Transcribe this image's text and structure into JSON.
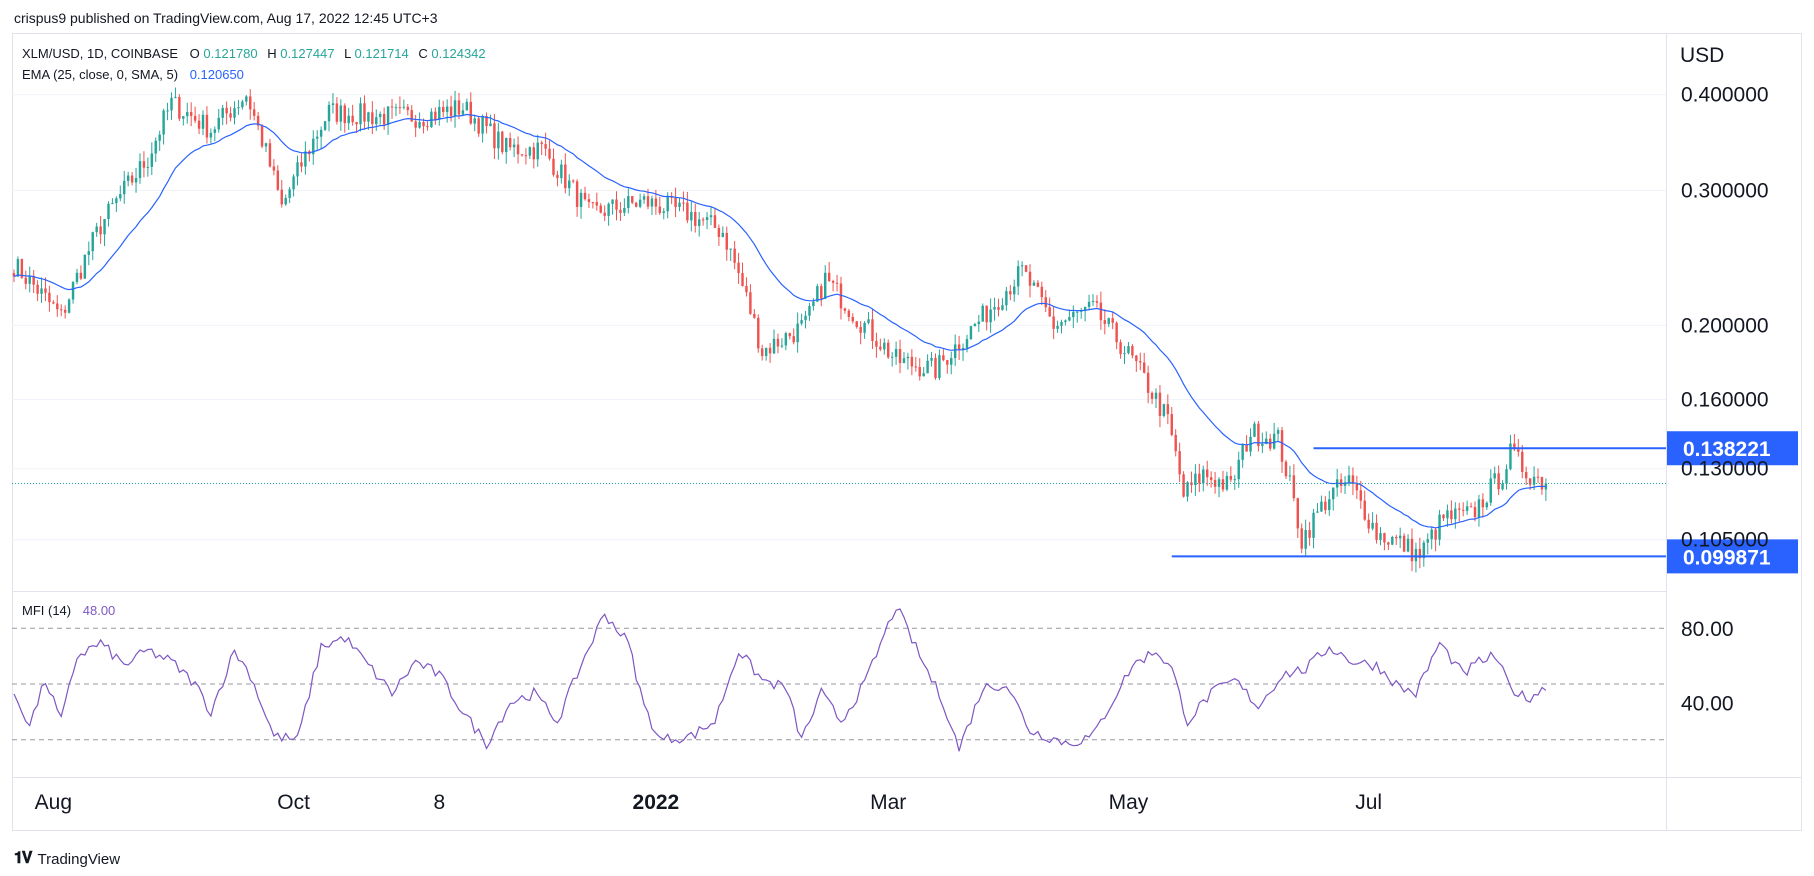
{
  "header": {
    "publisher": "crispus9 published on TradingView.com, Aug 17, 2022 12:45 UTC+3"
  },
  "legend": {
    "symbol": "XLM/USD, 1D, COINBASE",
    "o_label": "O",
    "o_value": "0.121780",
    "h_label": "H",
    "h_value": "0.127447",
    "l_label": "L",
    "l_value": "0.121714",
    "c_label": "C",
    "c_value": "0.124342",
    "ema_label": "EMA (25, close, 0, SMA, 5)",
    "ema_value": "0.120650",
    "mfi_label": "MFI (14)",
    "mfi_value": "48.00"
  },
  "footer": {
    "brand": "TradingView"
  },
  "colors": {
    "up": "#26a69a",
    "down": "#ef5350",
    "ema": "#2962ff",
    "mfi": "#7e57c2",
    "level": "#2962ff",
    "grid": "#e0e3eb",
    "axisText": "#131722"
  },
  "chart_data": [
    {
      "type": "candlestick",
      "title": "XLM/USD, 1D, COINBASE",
      "ylabel": "USD",
      "y_scale": "log",
      "ylim": [
        0.09,
        0.48
      ],
      "y_ticks": [
        {
          "value": 0.4,
          "label": "0.400000"
        },
        {
          "value": 0.3,
          "label": "0.300000"
        },
        {
          "value": 0.2,
          "label": "0.200000"
        },
        {
          "value": 0.16,
          "label": "0.160000"
        },
        {
          "value": 0.13,
          "label": "0.130000"
        },
        {
          "value": 0.105,
          "label": "0.105000"
        }
      ],
      "x_ticks": [
        {
          "day": 10,
          "label": "Aug"
        },
        {
          "day": 71,
          "label": "Oct"
        },
        {
          "day": 108,
          "label": "8"
        },
        {
          "day": 163,
          "label": "2022"
        },
        {
          "day": 222,
          "label": "Mar"
        },
        {
          "day": 283,
          "label": "May"
        },
        {
          "day": 344,
          "label": "Jul"
        }
      ],
      "levels": [
        {
          "value": 0.138221,
          "label": "0.138221",
          "from_day": 330,
          "to_day": 410
        },
        {
          "value": 0.099871,
          "label": "0.099871",
          "from_day": 294,
          "to_day": 410
        }
      ],
      "last_price": 0.124342,
      "anchors": [
        {
          "day": 0,
          "close": 0.24
        },
        {
          "day": 12,
          "close": 0.205
        },
        {
          "day": 22,
          "close": 0.27
        },
        {
          "day": 34,
          "close": 0.33
        },
        {
          "day": 40,
          "close": 0.39
        },
        {
          "day": 50,
          "close": 0.36
        },
        {
          "day": 59,
          "close": 0.4
        },
        {
          "day": 68,
          "close": 0.285
        },
        {
          "day": 80,
          "close": 0.38
        },
        {
          "day": 92,
          "close": 0.375
        },
        {
          "day": 104,
          "close": 0.375
        },
        {
          "day": 114,
          "close": 0.385
        },
        {
          "day": 125,
          "close": 0.34
        },
        {
          "day": 134,
          "close": 0.34
        },
        {
          "day": 146,
          "close": 0.28
        },
        {
          "day": 160,
          "close": 0.29
        },
        {
          "day": 171,
          "close": 0.28
        },
        {
          "day": 180,
          "close": 0.265
        },
        {
          "day": 190,
          "close": 0.185
        },
        {
          "day": 201,
          "close": 0.2
        },
        {
          "day": 206,
          "close": 0.23
        },
        {
          "day": 214,
          "close": 0.205
        },
        {
          "day": 224,
          "close": 0.18
        },
        {
          "day": 234,
          "close": 0.175
        },
        {
          "day": 246,
          "close": 0.205
        },
        {
          "day": 256,
          "close": 0.235
        },
        {
          "day": 264,
          "close": 0.2
        },
        {
          "day": 274,
          "close": 0.21
        },
        {
          "day": 284,
          "close": 0.18
        },
        {
          "day": 293,
          "close": 0.15
        },
        {
          "day": 297,
          "close": 0.12
        },
        {
          "day": 302,
          "close": 0.128
        },
        {
          "day": 309,
          "close": 0.123
        },
        {
          "day": 314,
          "close": 0.145
        },
        {
          "day": 321,
          "close": 0.142
        },
        {
          "day": 327,
          "close": 0.105
        },
        {
          "day": 334,
          "close": 0.12
        },
        {
          "day": 339,
          "close": 0.125
        },
        {
          "day": 346,
          "close": 0.107
        },
        {
          "day": 352,
          "close": 0.104
        },
        {
          "day": 357,
          "close": 0.1
        },
        {
          "day": 363,
          "close": 0.112
        },
        {
          "day": 370,
          "close": 0.113
        },
        {
          "day": 378,
          "close": 0.128
        },
        {
          "day": 380,
          "close": 0.136
        },
        {
          "day": 384,
          "close": 0.129
        },
        {
          "day": 389,
          "close": 0.124342
        }
      ]
    },
    {
      "type": "line",
      "title": "MFI (14)",
      "ylim": [
        0,
        100
      ],
      "y_ticks": [
        {
          "value": 80,
          "label": "80.00"
        },
        {
          "value": 40,
          "label": "40.00"
        }
      ],
      "bands": [
        20,
        50,
        80
      ],
      "anchors": [
        {
          "day": 0,
          "v": 45
        },
        {
          "day": 4,
          "v": 28
        },
        {
          "day": 8,
          "v": 52
        },
        {
          "day": 12,
          "v": 30
        },
        {
          "day": 16,
          "v": 65
        },
        {
          "day": 22,
          "v": 72
        },
        {
          "day": 28,
          "v": 60
        },
        {
          "day": 34,
          "v": 68
        },
        {
          "day": 40,
          "v": 62
        },
        {
          "day": 46,
          "v": 50
        },
        {
          "day": 50,
          "v": 35
        },
        {
          "day": 56,
          "v": 68
        },
        {
          "day": 60,
          "v": 55
        },
        {
          "day": 66,
          "v": 22
        },
        {
          "day": 72,
          "v": 20
        },
        {
          "day": 78,
          "v": 70
        },
        {
          "day": 84,
          "v": 75
        },
        {
          "day": 90,
          "v": 60
        },
        {
          "day": 96,
          "v": 45
        },
        {
          "day": 102,
          "v": 62
        },
        {
          "day": 108,
          "v": 55
        },
        {
          "day": 114,
          "v": 35
        },
        {
          "day": 120,
          "v": 18
        },
        {
          "day": 126,
          "v": 40
        },
        {
          "day": 132,
          "v": 45
        },
        {
          "day": 138,
          "v": 30
        },
        {
          "day": 145,
          "v": 65
        },
        {
          "day": 150,
          "v": 88
        },
        {
          "day": 156,
          "v": 72
        },
        {
          "day": 160,
          "v": 38
        },
        {
          "day": 164,
          "v": 20
        },
        {
          "day": 172,
          "v": 22
        },
        {
          "day": 178,
          "v": 30
        },
        {
          "day": 184,
          "v": 68
        },
        {
          "day": 190,
          "v": 52
        },
        {
          "day": 196,
          "v": 48
        },
        {
          "day": 200,
          "v": 20
        },
        {
          "day": 205,
          "v": 45
        },
        {
          "day": 210,
          "v": 30
        },
        {
          "day": 216,
          "v": 50
        },
        {
          "day": 224,
          "v": 92
        },
        {
          "day": 230,
          "v": 65
        },
        {
          "day": 236,
          "v": 40
        },
        {
          "day": 240,
          "v": 15
        },
        {
          "day": 246,
          "v": 48
        },
        {
          "day": 252,
          "v": 50
        },
        {
          "day": 258,
          "v": 25
        },
        {
          "day": 262,
          "v": 22
        },
        {
          "day": 268,
          "v": 18
        },
        {
          "day": 274,
          "v": 22
        },
        {
          "day": 280,
          "v": 45
        },
        {
          "day": 284,
          "v": 60
        },
        {
          "day": 290,
          "v": 68
        },
        {
          "day": 294,
          "v": 58
        },
        {
          "day": 298,
          "v": 30
        },
        {
          "day": 304,
          "v": 45
        },
        {
          "day": 310,
          "v": 52
        },
        {
          "day": 316,
          "v": 38
        },
        {
          "day": 322,
          "v": 55
        },
        {
          "day": 328,
          "v": 58
        },
        {
          "day": 334,
          "v": 70
        },
        {
          "day": 340,
          "v": 62
        },
        {
          "day": 346,
          "v": 60
        },
        {
          "day": 352,
          "v": 48
        },
        {
          "day": 356,
          "v": 45
        },
        {
          "day": 362,
          "v": 72
        },
        {
          "day": 368,
          "v": 55
        },
        {
          "day": 372,
          "v": 62
        },
        {
          "day": 376,
          "v": 65
        },
        {
          "day": 380,
          "v": 48
        },
        {
          "day": 384,
          "v": 42
        },
        {
          "day": 389,
          "v": 48
        }
      ]
    }
  ]
}
